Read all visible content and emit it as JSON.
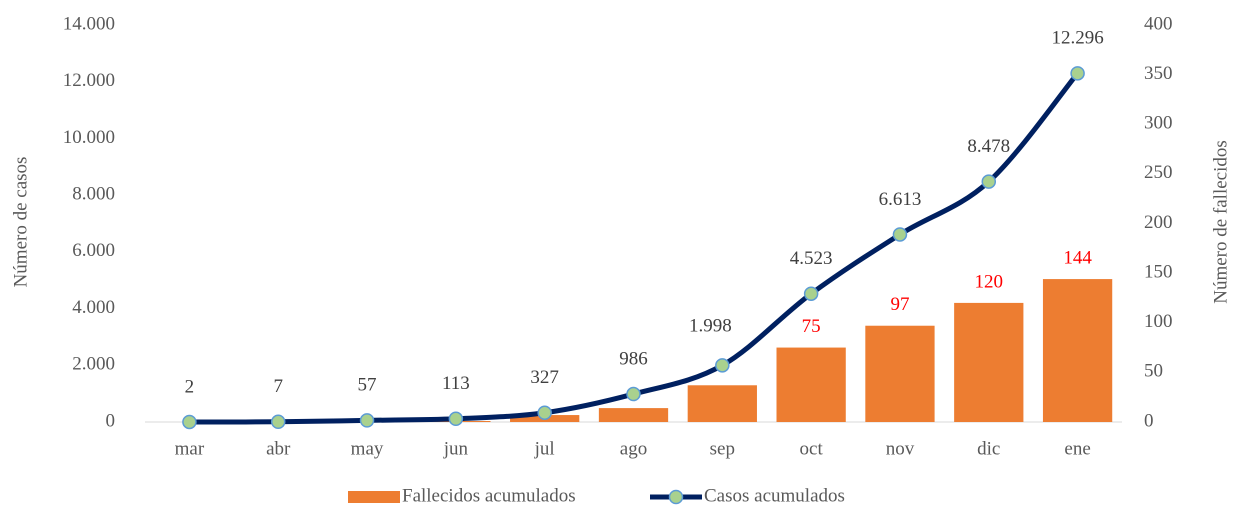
{
  "chart_data": {
    "type": "bar-line",
    "y_label": "Número de casos",
    "y2_label": "Número de fallecidos",
    "categories": [
      "mar",
      "abr",
      "may",
      "jun",
      "jul",
      "ago",
      "sep",
      "oct",
      "nov",
      "dic",
      "ene"
    ],
    "series": [
      {
        "name": "Fallecidos acumulados",
        "type": "bar",
        "axis": "y2",
        "color": "#ed7d31",
        "label_color": "#ff0000",
        "values": [
          0,
          0,
          0,
          1,
          7,
          14,
          37,
          75,
          97,
          120,
          144
        ],
        "value_labels": [
          null,
          null,
          null,
          null,
          null,
          null,
          null,
          "75",
          "97",
          "120",
          "144"
        ]
      },
      {
        "name": "Casos acumulados",
        "type": "line",
        "color": "#002060",
        "marker_color": "#a9d18e",
        "marker_edge": "#5b9bd5",
        "label_color": "#404040",
        "values": [
          2,
          7,
          57,
          113,
          327,
          986,
          1998,
          4523,
          6613,
          8478,
          12296
        ],
        "value_labels": [
          "2",
          "7",
          "57",
          "113",
          "327",
          "986",
          "1.998",
          "4.523",
          "6.613",
          "8.478",
          "12.296"
        ]
      }
    ],
    "ylim": [
      0,
      14000
    ],
    "yticks": [
      0,
      {
        "value": 2000,
        "label": "2.000"
      },
      {
        "value": 4000,
        "label": "4.000"
      },
      {
        "value": 6000,
        "label": "6.000"
      },
      {
        "value": 8000,
        "label": "8.000"
      },
      {
        "value": 10000,
        "label": "10.000"
      },
      {
        "value": 12000,
        "label": "12.000"
      },
      {
        "value": 14000,
        "label": "14.000"
      }
    ],
    "y2lim": [
      0,
      400
    ],
    "y2ticks": [
      0,
      50,
      100,
      150,
      200,
      250,
      300,
      350,
      400
    ],
    "grid": false,
    "legend": "bottom"
  }
}
